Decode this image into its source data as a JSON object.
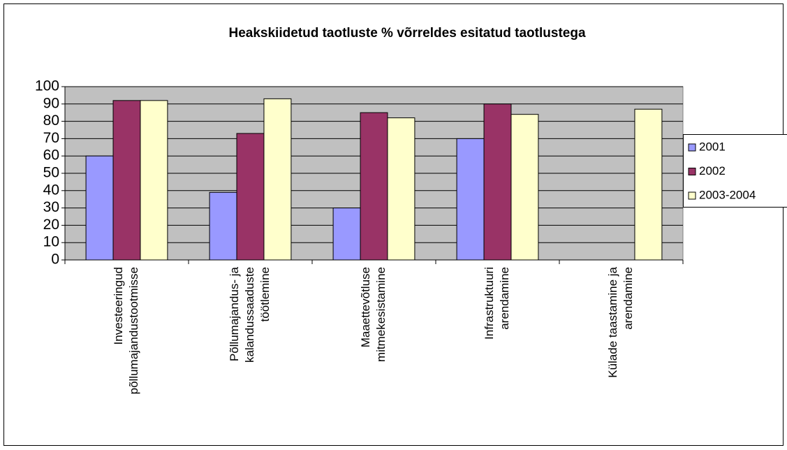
{
  "chart_data": {
    "type": "bar",
    "title": "Heakskiidetud taotluste % võrreldes esitatud taotlustega",
    "categories": [
      [
        "Investeeringud",
        "põllumajandustootmisse"
      ],
      [
        "Põllumajandus- ja",
        "kalandussaaduste",
        "töötlemine"
      ],
      [
        "Maaettevõtluse",
        "mitmekesistamine"
      ],
      [
        "Infrastruktuuri",
        "arendamine"
      ],
      [
        "Külade taastamine ja",
        "arendamine"
      ]
    ],
    "series": [
      {
        "name": "2001",
        "color": "#9999ff",
        "values": [
          60,
          39,
          30,
          70,
          null
        ]
      },
      {
        "name": "2002",
        "color": "#993366",
        "values": [
          92,
          73,
          85,
          90,
          null
        ]
      },
      {
        "name": "2003-2004",
        "color": "#ffffcc",
        "values": [
          92,
          93,
          82,
          84,
          87
        ]
      }
    ],
    "ylim": [
      0,
      100
    ],
    "yticks": [
      0,
      10,
      20,
      30,
      40,
      50,
      60,
      70,
      80,
      90,
      100
    ],
    "grid": true,
    "legend": "right"
  }
}
